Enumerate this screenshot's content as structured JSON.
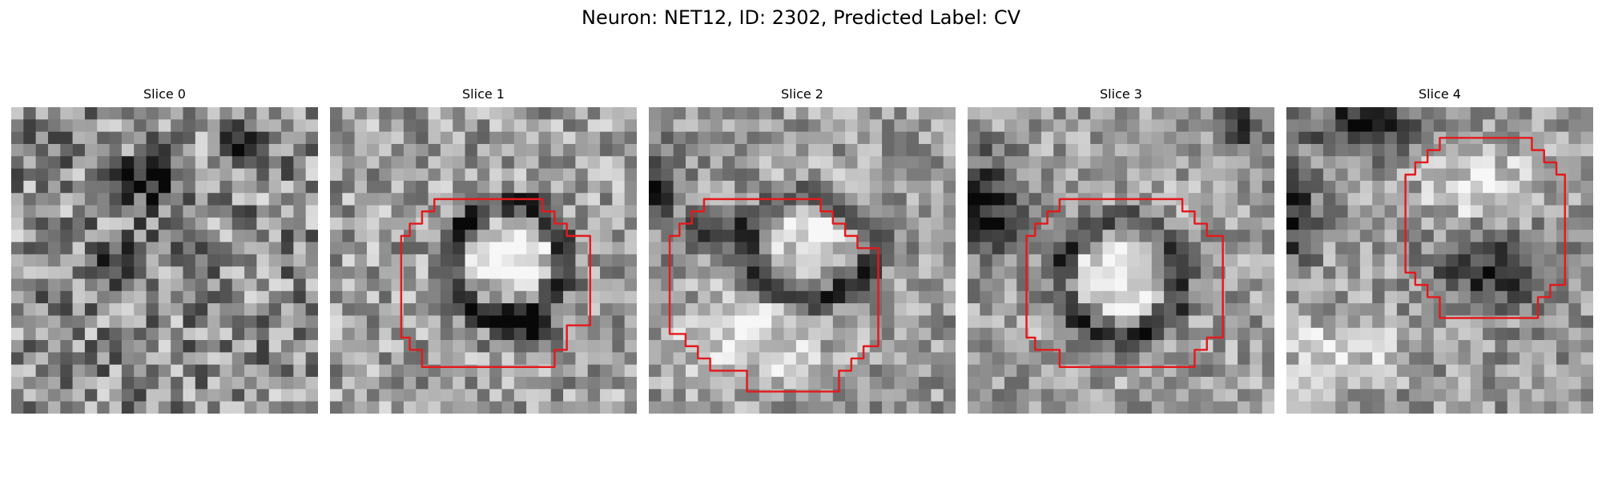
{
  "figure": {
    "title": "Neuron: NET12, ID: 2302, Predicted Label: CV",
    "contour_color": "#e31a1c",
    "colormap": "gray",
    "grid_size": 25
  },
  "panels": [
    {
      "title": "Slice 0",
      "contour": [],
      "dark_blobs": [
        {
          "cx": 11.5,
          "cy": 6.0,
          "rx": 2.2,
          "ry": 2.0,
          "a": 0.55
        },
        {
          "cx": 18.5,
          "cy": 3.0,
          "rx": 1.5,
          "ry": 1.5,
          "a": 0.45
        },
        {
          "cx": 9.0,
          "cy": 12.0,
          "rx": 2.5,
          "ry": 2.0,
          "a": 0.25
        }
      ],
      "light_blobs": [],
      "base": 0.55,
      "noise": 0.32
    },
    {
      "title": "Slice 1",
      "contour": [
        [
          9,
          7.5
        ],
        [
          17.3,
          7.5
        ],
        [
          17.3,
          8.5
        ],
        [
          18.3,
          8.5
        ],
        [
          18.3,
          9.5
        ],
        [
          19.3,
          9.5
        ],
        [
          19.3,
          10.5
        ],
        [
          21.2,
          10.5
        ],
        [
          21.2,
          17.8
        ],
        [
          19.3,
          17.8
        ],
        [
          19.3,
          19.8
        ],
        [
          18.3,
          19.8
        ],
        [
          18.3,
          21.2
        ],
        [
          7.5,
          21.2
        ],
        [
          7.5,
          19.8
        ],
        [
          6.5,
          19.8
        ],
        [
          6.5,
          18.8
        ],
        [
          5.8,
          18.8
        ],
        [
          5.8,
          10.5
        ],
        [
          6.5,
          10.5
        ],
        [
          6.5,
          9.5
        ],
        [
          7.5,
          9.5
        ],
        [
          7.5,
          8.5
        ],
        [
          8.5,
          8.5
        ],
        [
          8.5,
          7.5
        ]
      ],
      "dark_blobs": [
        {
          "cx": 14.5,
          "cy": 12.5,
          "rx": 6.2,
          "ry": 6.2,
          "a": 0.55,
          "ring": true
        },
        {
          "cx": 15.5,
          "cy": 18.0,
          "rx": 2.2,
          "ry": 1.4,
          "a": 0.55
        }
      ],
      "light_blobs": [
        {
          "cx": 15.0,
          "cy": 12.0,
          "rx": 3.5,
          "ry": 3.5,
          "a": 0.45
        }
      ],
      "base": 0.62,
      "noise": 0.25
    },
    {
      "title": "Slice 2",
      "contour": [
        [
          5,
          7.5
        ],
        [
          14,
          7.5
        ],
        [
          14,
          8.5
        ],
        [
          15,
          8.5
        ],
        [
          15,
          9.5
        ],
        [
          16,
          9.5
        ],
        [
          16,
          10.5
        ],
        [
          17,
          10.5
        ],
        [
          17,
          11.5
        ],
        [
          18.7,
          11.5
        ],
        [
          18.7,
          19.5
        ],
        [
          17.5,
          19.5
        ],
        [
          17.5,
          20.5
        ],
        [
          16.5,
          20.5
        ],
        [
          16.5,
          21.5
        ],
        [
          15.5,
          21.5
        ],
        [
          15.5,
          23.2
        ],
        [
          8,
          23.2
        ],
        [
          8,
          21.5
        ],
        [
          5,
          21.5
        ],
        [
          5,
          20.5
        ],
        [
          4,
          20.5
        ],
        [
          4,
          19.5
        ],
        [
          3,
          19.5
        ],
        [
          3,
          18.5
        ],
        [
          1.7,
          18.5
        ],
        [
          1.7,
          10.5
        ],
        [
          2.5,
          10.5
        ],
        [
          2.5,
          9.5
        ],
        [
          3.5,
          9.5
        ],
        [
          3.5,
          8.5
        ],
        [
          4.5,
          8.5
        ],
        [
          4.5,
          7.5
        ]
      ],
      "dark_blobs": [
        {
          "cx": 13.0,
          "cy": 11.5,
          "rx": 7.0,
          "ry": 5.5,
          "a": 0.5,
          "ring": true
        },
        {
          "cx": 1.0,
          "cy": 6.5,
          "rx": 1.5,
          "ry": 3.0,
          "a": 0.5
        },
        {
          "cx": 5.0,
          "cy": 10.0,
          "rx": 1.5,
          "ry": 1.5,
          "a": 0.45
        }
      ],
      "light_blobs": [
        {
          "cx": 13.5,
          "cy": 10.0,
          "rx": 4.0,
          "ry": 3.5,
          "a": 0.35
        },
        {
          "cx": 8.0,
          "cy": 19.0,
          "rx": 6.0,
          "ry": 3.5,
          "a": 0.3
        }
      ],
      "base": 0.6,
      "noise": 0.22
    },
    {
      "title": "Slice 3",
      "contour": [
        [
          8,
          7.5
        ],
        [
          17.5,
          7.5
        ],
        [
          17.5,
          8.5
        ],
        [
          18.5,
          8.5
        ],
        [
          18.5,
          9.5
        ],
        [
          19.5,
          9.5
        ],
        [
          19.5,
          10.5
        ],
        [
          20.8,
          10.5
        ],
        [
          20.8,
          18.8
        ],
        [
          19.5,
          18.8
        ],
        [
          19.5,
          19.8
        ],
        [
          18.5,
          19.8
        ],
        [
          18.5,
          21.2
        ],
        [
          7.5,
          21.2
        ],
        [
          7.5,
          19.8
        ],
        [
          5.5,
          19.8
        ],
        [
          5.5,
          18.8
        ],
        [
          4.8,
          18.8
        ],
        [
          4.8,
          10.5
        ],
        [
          5.5,
          10.5
        ],
        [
          5.5,
          9.5
        ],
        [
          6.5,
          9.5
        ],
        [
          6.5,
          8.5
        ],
        [
          7.5,
          8.5
        ],
        [
          7.5,
          7.5
        ]
      ],
      "dark_blobs": [
        {
          "cx": 12.5,
          "cy": 14.0,
          "rx": 6.5,
          "ry": 6.5,
          "a": 0.45,
          "ring": true
        },
        {
          "cx": 1.5,
          "cy": 8.0,
          "rx": 2.5,
          "ry": 4.0,
          "a": 0.55
        },
        {
          "cx": 22.5,
          "cy": 2.0,
          "rx": 2.0,
          "ry": 2.0,
          "a": 0.4
        }
      ],
      "light_blobs": [
        {
          "cx": 12.5,
          "cy": 13.0,
          "rx": 4.0,
          "ry": 4.0,
          "a": 0.35
        }
      ],
      "base": 0.62,
      "noise": 0.22
    },
    {
      "title": "Slice 4",
      "contour": [
        [
          13.2,
          2.5
        ],
        [
          20,
          2.5
        ],
        [
          20,
          3.5
        ],
        [
          21,
          3.5
        ],
        [
          21,
          4.5
        ],
        [
          22,
          4.5
        ],
        [
          22,
          5.5
        ],
        [
          22.7,
          5.5
        ],
        [
          22.7,
          14.5
        ],
        [
          21.5,
          14.5
        ],
        [
          21.5,
          15.5
        ],
        [
          20.5,
          15.5
        ],
        [
          20.5,
          17.2
        ],
        [
          12.5,
          17.2
        ],
        [
          12.5,
          15.5
        ],
        [
          11.5,
          15.5
        ],
        [
          11.5,
          14.5
        ],
        [
          10.5,
          14.5
        ],
        [
          10.5,
          13.5
        ],
        [
          9.7,
          13.5
        ],
        [
          9.7,
          5.5
        ],
        [
          10.5,
          5.5
        ],
        [
          10.5,
          4.5
        ],
        [
          11.5,
          4.5
        ],
        [
          11.5,
          3.5
        ],
        [
          12.5,
          3.5
        ],
        [
          12.5,
          2.5
        ]
      ],
      "dark_blobs": [
        {
          "cx": 7.0,
          "cy": 1.5,
          "rx": 4.5,
          "ry": 2.0,
          "a": 0.55
        },
        {
          "cx": 16.5,
          "cy": 13.0,
          "rx": 4.0,
          "ry": 3.0,
          "a": 0.45
        },
        {
          "cx": 1.0,
          "cy": 9.0,
          "rx": 1.5,
          "ry": 3.5,
          "a": 0.5
        }
      ],
      "light_blobs": [
        {
          "cx": 16.0,
          "cy": 6.5,
          "rx": 4.5,
          "ry": 3.0,
          "a": 0.3
        },
        {
          "cx": 4.0,
          "cy": 20.0,
          "rx": 5.0,
          "ry": 3.0,
          "a": 0.25
        }
      ],
      "base": 0.6,
      "noise": 0.22
    }
  ]
}
